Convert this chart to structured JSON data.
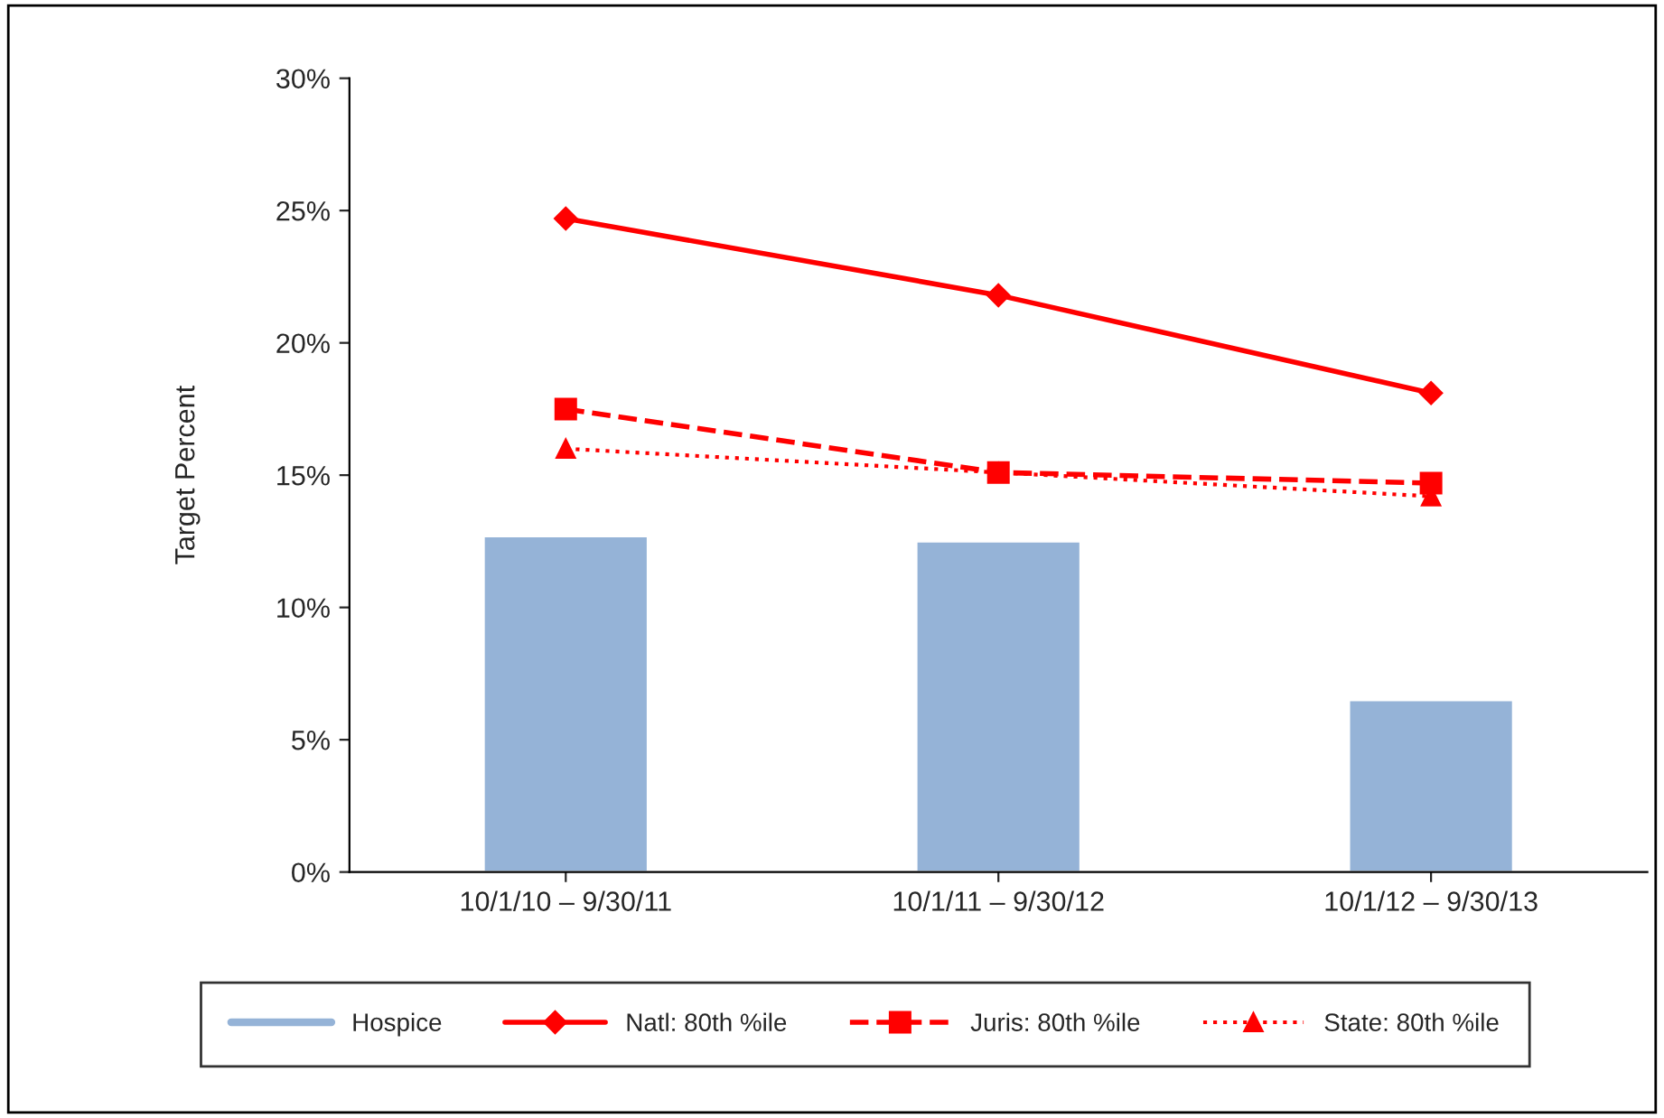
{
  "chart_data": {
    "type": "bar",
    "ylabel": "Target Percent",
    "categories": [
      "10/1/10 – 9/30/11",
      "10/1/11 – 9/30/12",
      "10/1/12 – 9/30/13"
    ],
    "series": [
      {
        "name": "Hospice",
        "color": "#95b3d7",
        "values": [
          12.7,
          12.5,
          6.5
        ]
      },
      {
        "name": "Natl: 80th %ile",
        "type": "line",
        "color": "#ff0000",
        "marker": "diamond",
        "line_style": "solid",
        "values": [
          24.7,
          21.8,
          18.1
        ]
      },
      {
        "name": "Juris: 80th %ile",
        "type": "line",
        "color": "#ff0000",
        "marker": "square",
        "line_style": "dashed",
        "values": [
          17.5,
          15.1,
          14.7
        ]
      },
      {
        "name": "State: 80th %ile",
        "type": "line",
        "color": "#ff0000",
        "marker": "triangle",
        "line_style": "dotted",
        "values": [
          16.0,
          15.1,
          14.2
        ]
      }
    ],
    "ylim": [
      0,
      30
    ],
    "yticks": [
      {
        "value": 0,
        "label": "0%"
      },
      {
        "value": 5,
        "label": "5%"
      },
      {
        "value": 10,
        "label": "10%"
      },
      {
        "value": 15,
        "label": "15%"
      },
      {
        "value": 20,
        "label": "20%"
      },
      {
        "value": 25,
        "label": "25%"
      },
      {
        "value": 30,
        "label": "30%"
      }
    ],
    "grid": false,
    "legend": "bottom"
  }
}
